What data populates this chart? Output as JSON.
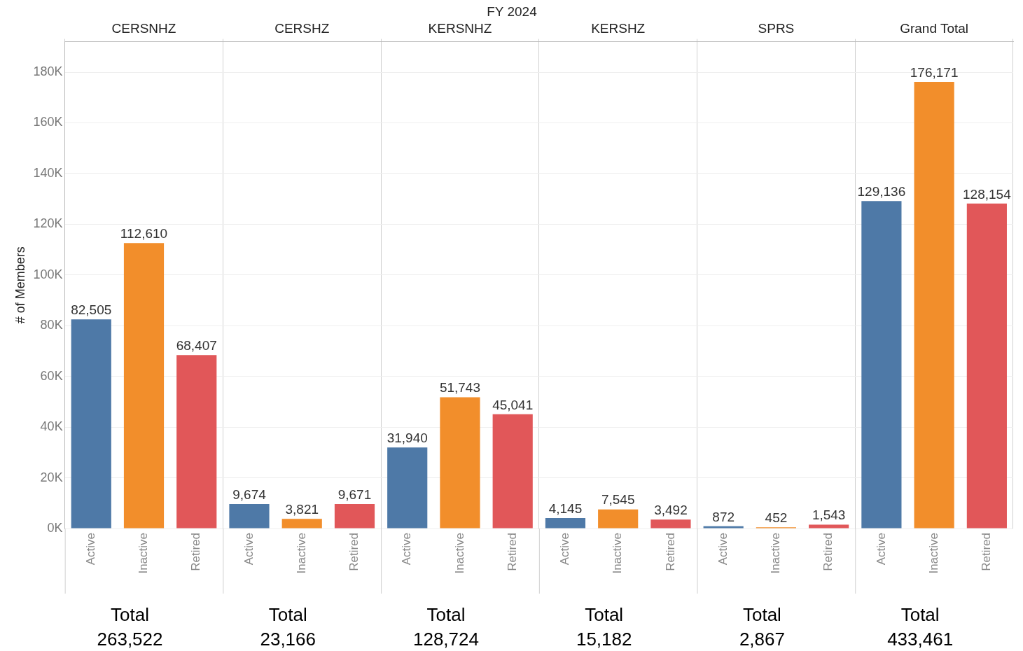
{
  "chart_data": {
    "type": "bar",
    "title": "FY 2024",
    "ylabel": "# of Members",
    "categories": [
      "CERSNHZ",
      "CERSHZ",
      "KERSNHZ",
      "KERSHZ",
      "SPRS",
      "Grand Total"
    ],
    "series": [
      {
        "name": "Active",
        "color": "#4e79a7",
        "values": [
          82505,
          9674,
          31940,
          4145,
          872,
          129136
        ],
        "value_labels": [
          "82,505",
          "9,674",
          "31,940",
          "4,145",
          "872",
          "129,136"
        ]
      },
      {
        "name": "Inactive",
        "color": "#f28e2b",
        "values": [
          112610,
          3821,
          51743,
          7545,
          452,
          176171
        ],
        "value_labels": [
          "112,610",
          "3,821",
          "51,743",
          "7,545",
          "452",
          "176,171"
        ]
      },
      {
        "name": "Retired",
        "color": "#e15759",
        "values": [
          68407,
          9671,
          45041,
          3492,
          1543,
          128154
        ],
        "value_labels": [
          "68,407",
          "9,671",
          "45,041",
          "3,492",
          "1,543",
          "128,154"
        ]
      }
    ],
    "ylim": [
      0,
      192000
    ],
    "yticks": [
      {
        "value": 0,
        "label": "0K"
      },
      {
        "value": 20000,
        "label": "20K"
      },
      {
        "value": 40000,
        "label": "40K"
      },
      {
        "value": 60000,
        "label": "60K"
      },
      {
        "value": 80000,
        "label": "80K"
      },
      {
        "value": 100000,
        "label": "100K"
      },
      {
        "value": 120000,
        "label": "120K"
      },
      {
        "value": 140000,
        "label": "140K"
      },
      {
        "value": 160000,
        "label": "160K"
      },
      {
        "value": 180000,
        "label": "180K"
      }
    ],
    "grid": true,
    "legend": false,
    "annotations": [
      "Total\n263,522",
      "Total\n23,166",
      "Total\n128,724",
      "Total\n15,182",
      "Total\n2,867",
      "Total\n433,461"
    ]
  }
}
